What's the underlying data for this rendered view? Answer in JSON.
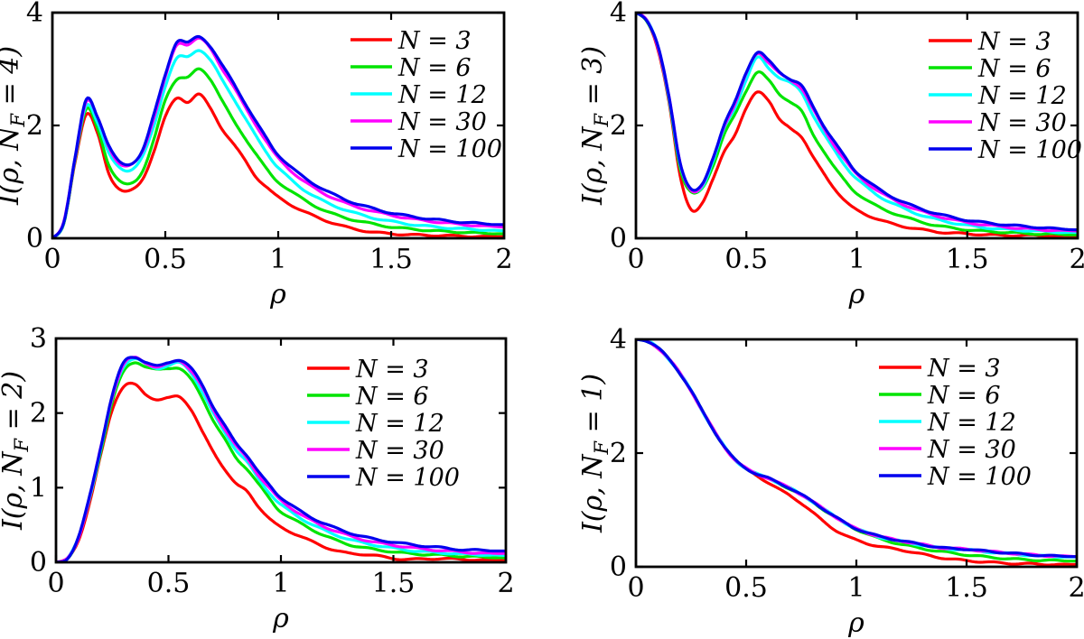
{
  "figure": {
    "background": "#ffffff",
    "axis_color": "#000000",
    "legend_labels": [
      "N = 3",
      "N = 6",
      "N = 12",
      "N = 30",
      "N = 100"
    ],
    "series_colors": [
      "#ff0000",
      "#00e400",
      "#00ffff",
      "#ff00ff",
      "#0000ee"
    ]
  },
  "chart_data": [
    {
      "type": "line",
      "title": "",
      "xlabel": "ρ",
      "ylabel": "I(ρ, N_F = 4)",
      "ylabel_parts": {
        "pre": "I(ρ, N",
        "sub": "F",
        "post": " = 4)"
      },
      "xlim": [
        0,
        2
      ],
      "ylim": [
        0,
        4
      ],
      "xticks": [
        0,
        0.5,
        1,
        1.5,
        2
      ],
      "xtick_labels": [
        "0",
        "0.5",
        "1",
        "1.5",
        "2"
      ],
      "yticks": [
        0,
        2,
        4
      ],
      "ytick_labels": [
        "0",
        "2",
        "4"
      ],
      "grid": false,
      "legend_position": "top-right",
      "x": [
        0,
        0.05,
        0.1,
        0.15,
        0.2,
        0.25,
        0.3,
        0.35,
        0.4,
        0.45,
        0.5,
        0.55,
        0.6,
        0.65,
        0.7,
        0.75,
        0.8,
        0.85,
        0.9,
        0.95,
        1.0,
        1.1,
        1.2,
        1.3,
        1.4,
        1.5,
        1.6,
        1.7,
        1.8,
        1.9,
        2.0
      ],
      "series": [
        {
          "name": "N = 3",
          "color": "#ff0000",
          "values": [
            0,
            0.25,
            1.35,
            2.2,
            1.85,
            1.15,
            0.87,
            0.85,
            1.05,
            1.55,
            2.15,
            2.48,
            2.42,
            2.55,
            2.3,
            1.95,
            1.68,
            1.4,
            1.1,
            0.9,
            0.73,
            0.5,
            0.33,
            0.2,
            0.12,
            0.08,
            0.06,
            0.05,
            0.04,
            0.03,
            0.03
          ]
        },
        {
          "name": "N = 6",
          "color": "#00e400",
          "values": [
            0,
            0.26,
            1.38,
            2.28,
            1.95,
            1.3,
            1.0,
            0.98,
            1.2,
            1.75,
            2.45,
            2.82,
            2.85,
            3.0,
            2.82,
            2.45,
            2.1,
            1.8,
            1.5,
            1.22,
            1.0,
            0.72,
            0.5,
            0.36,
            0.27,
            0.2,
            0.16,
            0.13,
            0.11,
            0.09,
            0.08
          ]
        },
        {
          "name": "N = 12",
          "color": "#00ffff",
          "values": [
            0,
            0.27,
            1.4,
            2.36,
            2.05,
            1.5,
            1.25,
            1.22,
            1.45,
            2.0,
            2.7,
            3.18,
            3.22,
            3.34,
            3.15,
            2.82,
            2.5,
            2.15,
            1.82,
            1.52,
            1.25,
            0.9,
            0.66,
            0.5,
            0.38,
            0.3,
            0.24,
            0.2,
            0.17,
            0.15,
            0.13
          ]
        },
        {
          "name": "N = 30",
          "color": "#ff00ff",
          "values": [
            0,
            0.28,
            1.42,
            2.43,
            2.13,
            1.62,
            1.32,
            1.3,
            1.55,
            2.15,
            2.85,
            3.42,
            3.44,
            3.54,
            3.36,
            3.02,
            2.7,
            2.35,
            2.02,
            1.7,
            1.42,
            1.05,
            0.8,
            0.62,
            0.5,
            0.41,
            0.34,
            0.29,
            0.25,
            0.22,
            0.2
          ]
        },
        {
          "name": "N = 100",
          "color": "#0000ee",
          "values": [
            0,
            0.28,
            1.43,
            2.45,
            2.15,
            1.65,
            1.34,
            1.32,
            1.58,
            2.2,
            2.9,
            3.48,
            3.47,
            3.57,
            3.4,
            3.08,
            2.76,
            2.42,
            2.08,
            1.76,
            1.48,
            1.12,
            0.87,
            0.68,
            0.55,
            0.45,
            0.38,
            0.33,
            0.29,
            0.26,
            0.24
          ]
        }
      ]
    },
    {
      "type": "line",
      "title": "",
      "xlabel": "ρ",
      "ylabel": "I(ρ, N_F = 3)",
      "ylabel_parts": {
        "pre": "I(ρ, N",
        "sub": "F",
        "post": " = 3)"
      },
      "xlim": [
        0,
        2
      ],
      "ylim": [
        0,
        4
      ],
      "xticks": [
        0,
        0.5,
        1,
        1.5,
        2
      ],
      "xtick_labels": [
        "0",
        "0.5",
        "1",
        "1.5",
        "2"
      ],
      "yticks": [
        0,
        2,
        4
      ],
      "ytick_labels": [
        "0",
        "2",
        "4"
      ],
      "grid": false,
      "legend_position": "top-right",
      "x": [
        0,
        0.05,
        0.1,
        0.15,
        0.2,
        0.25,
        0.3,
        0.35,
        0.4,
        0.45,
        0.5,
        0.55,
        0.6,
        0.65,
        0.7,
        0.75,
        0.8,
        0.85,
        0.9,
        0.95,
        1.0,
        1.1,
        1.2,
        1.3,
        1.4,
        1.5,
        1.6,
        1.7,
        1.8,
        1.9,
        2.0
      ],
      "series": [
        {
          "name": "N = 3",
          "color": "#ff0000",
          "values": [
            4.0,
            3.85,
            3.35,
            2.4,
            1.1,
            0.52,
            0.62,
            1.05,
            1.55,
            1.85,
            2.3,
            2.6,
            2.45,
            2.1,
            1.95,
            1.8,
            1.45,
            1.15,
            0.88,
            0.65,
            0.5,
            0.33,
            0.22,
            0.15,
            0.1,
            0.08,
            0.06,
            0.05,
            0.05,
            0.04,
            0.04
          ]
        },
        {
          "name": "N = 6",
          "color": "#00e400",
          "values": [
            4.0,
            3.85,
            3.37,
            2.45,
            1.25,
            0.82,
            0.88,
            1.3,
            1.85,
            2.2,
            2.62,
            2.95,
            2.8,
            2.55,
            2.42,
            2.25,
            1.85,
            1.55,
            1.25,
            1.0,
            0.8,
            0.55,
            0.4,
            0.28,
            0.2,
            0.15,
            0.12,
            0.1,
            0.08,
            0.07,
            0.06
          ]
        },
        {
          "name": "N = 12",
          "color": "#00ffff",
          "values": [
            4.0,
            3.86,
            3.38,
            2.48,
            1.3,
            0.85,
            0.92,
            1.38,
            1.95,
            2.33,
            2.82,
            3.2,
            3.02,
            2.85,
            2.75,
            2.58,
            2.2,
            1.85,
            1.55,
            1.28,
            1.05,
            0.75,
            0.55,
            0.4,
            0.3,
            0.23,
            0.18,
            0.15,
            0.13,
            0.11,
            0.1
          ]
        },
        {
          "name": "N = 30",
          "color": "#ff00ff",
          "values": [
            4.0,
            3.86,
            3.39,
            2.5,
            1.33,
            0.86,
            0.94,
            1.42,
            2.0,
            2.4,
            2.92,
            3.28,
            3.12,
            2.92,
            2.8,
            2.66,
            2.3,
            1.95,
            1.64,
            1.37,
            1.13,
            0.83,
            0.62,
            0.47,
            0.36,
            0.28,
            0.23,
            0.19,
            0.16,
            0.14,
            0.13
          ]
        },
        {
          "name": "N = 100",
          "color": "#0000ee",
          "values": [
            4.0,
            3.86,
            3.4,
            2.5,
            1.35,
            0.87,
            0.95,
            1.44,
            2.02,
            2.43,
            2.95,
            3.3,
            3.15,
            2.95,
            2.82,
            2.7,
            2.35,
            2.0,
            1.7,
            1.42,
            1.17,
            0.87,
            0.66,
            0.51,
            0.4,
            0.32,
            0.27,
            0.23,
            0.2,
            0.17,
            0.15
          ]
        }
      ]
    },
    {
      "type": "line",
      "title": "",
      "xlabel": "ρ",
      "ylabel": "I(ρ, N_F = 2)",
      "ylabel_parts": {
        "pre": "I(ρ, N",
        "sub": "F",
        "post": " = 2)"
      },
      "xlim": [
        0,
        2
      ],
      "ylim": [
        0,
        3
      ],
      "xticks": [
        0,
        0.5,
        1,
        1.5,
        2
      ],
      "xtick_labels": [
        "0",
        "0.5",
        "1",
        "1.5",
        "2"
      ],
      "yticks": [
        0,
        1,
        2,
        3
      ],
      "ytick_labels": [
        "0",
        "1",
        "2",
        "3"
      ],
      "grid": false,
      "legend_position": "top-right",
      "x": [
        0,
        0.05,
        0.1,
        0.15,
        0.2,
        0.25,
        0.3,
        0.35,
        0.4,
        0.45,
        0.5,
        0.55,
        0.6,
        0.65,
        0.7,
        0.75,
        0.8,
        0.85,
        0.9,
        0.95,
        1.0,
        1.1,
        1.2,
        1.3,
        1.4,
        1.5,
        1.6,
        1.7,
        1.8,
        1.9,
        2.0
      ],
      "series": [
        {
          "name": "N = 3",
          "color": "#ff0000",
          "values": [
            0,
            0.05,
            0.3,
            0.8,
            1.45,
            2.05,
            2.35,
            2.38,
            2.25,
            2.18,
            2.2,
            2.22,
            2.05,
            1.75,
            1.48,
            1.25,
            1.05,
            0.95,
            0.75,
            0.58,
            0.47,
            0.33,
            0.2,
            0.12,
            0.1,
            0.05,
            0.04,
            0.05,
            0.04,
            0.03,
            0.03
          ]
        },
        {
          "name": "N = 6",
          "color": "#00e400",
          "values": [
            0,
            0.05,
            0.32,
            0.85,
            1.5,
            2.15,
            2.55,
            2.68,
            2.62,
            2.58,
            2.6,
            2.6,
            2.45,
            2.2,
            1.9,
            1.65,
            1.4,
            1.25,
            1.05,
            0.85,
            0.68,
            0.5,
            0.35,
            0.24,
            0.18,
            0.14,
            0.11,
            0.1,
            0.08,
            0.07,
            0.06
          ]
        },
        {
          "name": "N = 12",
          "color": "#00ffff",
          "values": [
            0,
            0.05,
            0.33,
            0.87,
            1.53,
            2.2,
            2.62,
            2.73,
            2.65,
            2.6,
            2.64,
            2.67,
            2.54,
            2.29,
            1.99,
            1.74,
            1.51,
            1.34,
            1.12,
            0.93,
            0.77,
            0.57,
            0.42,
            0.31,
            0.24,
            0.19,
            0.15,
            0.13,
            0.11,
            0.1,
            0.09
          ]
        },
        {
          "name": "N = 30",
          "color": "#ff00ff",
          "values": [
            0,
            0.05,
            0.33,
            0.88,
            1.55,
            2.22,
            2.65,
            2.74,
            2.67,
            2.62,
            2.66,
            2.7,
            2.57,
            2.34,
            2.04,
            1.79,
            1.56,
            1.39,
            1.17,
            0.99,
            0.83,
            0.62,
            0.47,
            0.36,
            0.28,
            0.23,
            0.19,
            0.16,
            0.14,
            0.12,
            0.12
          ]
        },
        {
          "name": "N = 100",
          "color": "#0000ee",
          "values": [
            0,
            0.05,
            0.34,
            0.89,
            1.56,
            2.24,
            2.67,
            2.75,
            2.68,
            2.63,
            2.68,
            2.71,
            2.6,
            2.38,
            2.08,
            1.83,
            1.6,
            1.43,
            1.21,
            1.03,
            0.87,
            0.66,
            0.51,
            0.4,
            0.32,
            0.27,
            0.23,
            0.2,
            0.17,
            0.16,
            0.15
          ]
        }
      ]
    },
    {
      "type": "line",
      "title": "",
      "xlabel": "ρ",
      "ylabel": "I(ρ, N_F = 1)",
      "ylabel_parts": {
        "pre": "I(ρ, N",
        "sub": "F",
        "post": " = 1)"
      },
      "xlim": [
        0,
        2
      ],
      "ylim": [
        0,
        4
      ],
      "xticks": [
        0,
        0.5,
        1,
        1.5,
        2
      ],
      "xtick_labels": [
        "0",
        "0.5",
        "1",
        "1.5",
        "2"
      ],
      "yticks": [
        0,
        2,
        4
      ],
      "ytick_labels": [
        "0",
        "2",
        "4"
      ],
      "grid": false,
      "legend_position": "top-right",
      "x": [
        0,
        0.05,
        0.1,
        0.15,
        0.2,
        0.25,
        0.3,
        0.35,
        0.4,
        0.45,
        0.5,
        0.55,
        0.6,
        0.65,
        0.7,
        0.75,
        0.8,
        0.85,
        0.9,
        0.95,
        1.0,
        1.1,
        1.2,
        1.3,
        1.4,
        1.5,
        1.6,
        1.7,
        1.8,
        1.9,
        2.0
      ],
      "series": [
        {
          "name": "N = 3",
          "color": "#ff0000",
          "values": [
            4.0,
            3.97,
            3.85,
            3.65,
            3.4,
            3.1,
            2.75,
            2.42,
            2.12,
            1.88,
            1.72,
            1.6,
            1.48,
            1.36,
            1.25,
            1.12,
            0.96,
            0.8,
            0.66,
            0.55,
            0.47,
            0.36,
            0.3,
            0.22,
            0.15,
            0.11,
            0.08,
            0.06,
            0.05,
            0.04,
            0.04
          ]
        },
        {
          "name": "N = 6",
          "color": "#00e400",
          "values": [
            4.0,
            3.97,
            3.85,
            3.65,
            3.4,
            3.1,
            2.75,
            2.42,
            2.12,
            1.88,
            1.73,
            1.63,
            1.55,
            1.46,
            1.37,
            1.26,
            1.14,
            1.01,
            0.88,
            0.76,
            0.66,
            0.5,
            0.4,
            0.32,
            0.26,
            0.21,
            0.17,
            0.14,
            0.12,
            0.11,
            0.1
          ]
        },
        {
          "name": "N = 12",
          "color": "#00ffff",
          "values": [
            4.0,
            3.97,
            3.85,
            3.65,
            3.4,
            3.1,
            2.75,
            2.42,
            2.12,
            1.88,
            1.73,
            1.63,
            1.56,
            1.47,
            1.38,
            1.27,
            1.15,
            1.02,
            0.89,
            0.77,
            0.67,
            0.53,
            0.45,
            0.38,
            0.32,
            0.3,
            0.26,
            0.23,
            0.2,
            0.18,
            0.17
          ]
        },
        {
          "name": "N = 30",
          "color": "#ff00ff",
          "values": [
            4.0,
            3.97,
            3.85,
            3.65,
            3.4,
            3.1,
            2.75,
            2.42,
            2.12,
            1.88,
            1.73,
            1.63,
            1.56,
            1.47,
            1.38,
            1.27,
            1.15,
            1.02,
            0.89,
            0.77,
            0.67,
            0.54,
            0.46,
            0.39,
            0.33,
            0.31,
            0.27,
            0.24,
            0.21,
            0.19,
            0.18
          ]
        },
        {
          "name": "N = 100",
          "color": "#0000ee",
          "values": [
            4.0,
            3.97,
            3.85,
            3.65,
            3.4,
            3.1,
            2.75,
            2.42,
            2.12,
            1.88,
            1.73,
            1.63,
            1.56,
            1.47,
            1.38,
            1.27,
            1.15,
            1.02,
            0.89,
            0.77,
            0.67,
            0.54,
            0.46,
            0.39,
            0.33,
            0.31,
            0.27,
            0.24,
            0.21,
            0.19,
            0.18
          ]
        }
      ]
    }
  ]
}
